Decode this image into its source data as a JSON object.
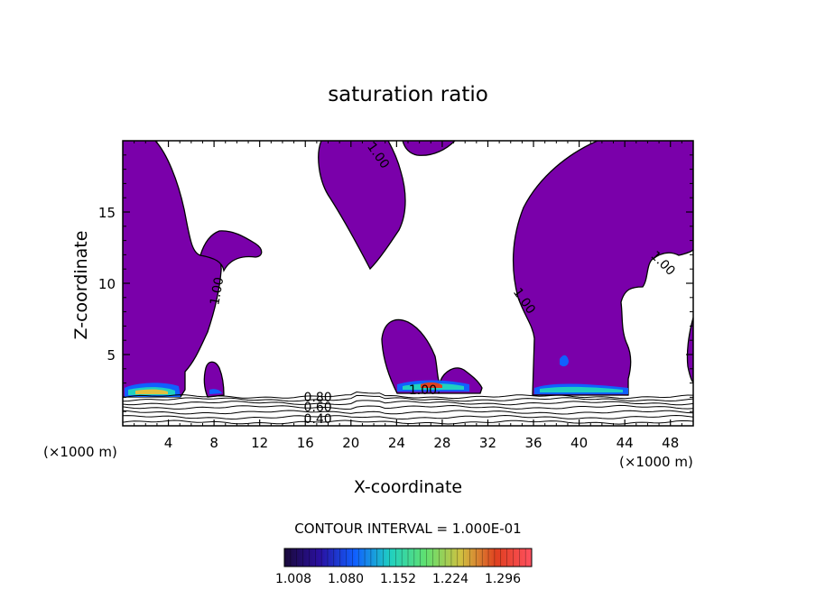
{
  "chart_data": {
    "type": "heatmap",
    "title": "saturation ratio",
    "xlabel": "X-coordinate",
    "ylabel": "Z-coordinate",
    "x_unit_left": "(×1000 m)",
    "x_unit_right": "(×1000 m)",
    "xlim": [
      0,
      50
    ],
    "ylim": [
      0,
      20
    ],
    "x_ticks": [
      4,
      8,
      12,
      16,
      20,
      24,
      28,
      32,
      36,
      40,
      44,
      48
    ],
    "y_ticks": [
      5,
      10,
      15
    ],
    "contour_interval_text": "CONTOUR INTERVAL = 1.000E-01",
    "contour_labels": [
      {
        "text": "1.00",
        "x": 22.1,
        "y": 18.8,
        "rot": 55
      },
      {
        "text": "1.00",
        "x": 8.6,
        "y": 9.4,
        "rot": -80
      },
      {
        "text": "1.00",
        "x": 34.9,
        "y": 8.6,
        "rot": 55
      },
      {
        "text": "1.00",
        "x": 47.1,
        "y": 11.2,
        "rot": 45
      },
      {
        "text": "1.00",
        "x": 26.3,
        "y": 2.2,
        "rot": 0
      },
      {
        "text": "0.80",
        "x": 17.1,
        "y": 1.7,
        "rot": 0
      },
      {
        "text": "0.60",
        "x": 17.1,
        "y": 1.0,
        "rot": 0
      },
      {
        "text": "0.40",
        "x": 17.1,
        "y": 0.2,
        "rot": 0
      }
    ],
    "colorbar": {
      "min": 1.008,
      "max": 1.296,
      "tick_labels": [
        "1.008",
        "1.080",
        "1.152",
        "1.224",
        "1.296"
      ],
      "colors": [
        "#1a0a3a",
        "#2a10a0",
        "#1060ff",
        "#20d0c0",
        "#60e070",
        "#d0c040",
        "#e04020",
        "#ff5060"
      ]
    },
    "fill_color": "#7a00aa",
    "line_color": "#000000"
  }
}
